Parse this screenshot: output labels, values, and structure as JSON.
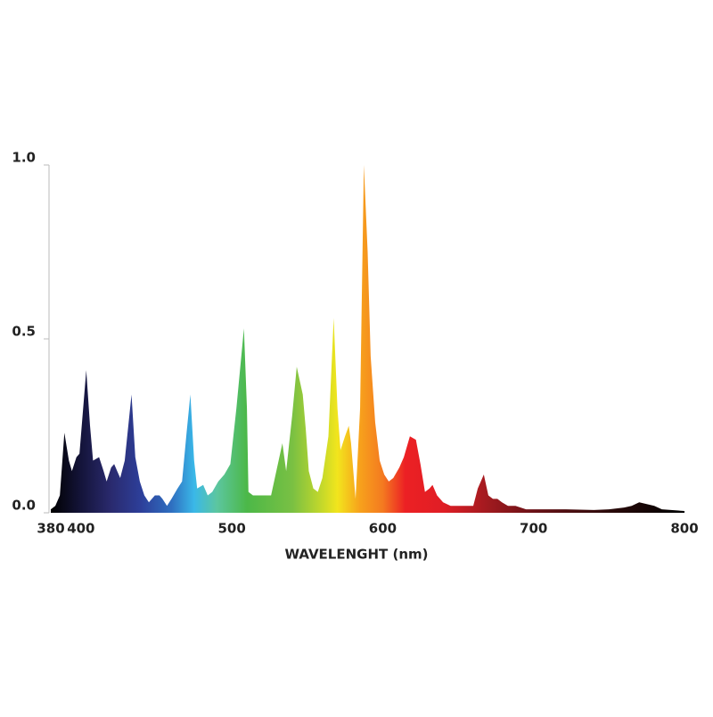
{
  "chart_data": {
    "type": "area",
    "x_label": "WAVELENGHT (nm)",
    "x": [
      380,
      383,
      386,
      389,
      392,
      394,
      397,
      399,
      403.5,
      406,
      408,
      412,
      415,
      417,
      420,
      422,
      424,
      426,
      429,
      433.5,
      436,
      439,
      442,
      445,
      449,
      452,
      454,
      457,
      460,
      464,
      467,
      470,
      472.5,
      475,
      477,
      481,
      484,
      487,
      491,
      495,
      499,
      503,
      508,
      510,
      511,
      514,
      517,
      521,
      526,
      530,
      533.5,
      536,
      540,
      543,
      547,
      549,
      551,
      554,
      557,
      560,
      564,
      567.5,
      570,
      572,
      575,
      577.5,
      579,
      582,
      585,
      587.5,
      590,
      592,
      595,
      598,
      601,
      604,
      607,
      611,
      614,
      618,
      622,
      625,
      628,
      631,
      633,
      636,
      640,
      645,
      650,
      655,
      660,
      663,
      667,
      670,
      673,
      676,
      679,
      683,
      688,
      695,
      705,
      720,
      740,
      750,
      760,
      765,
      770,
      775,
      780,
      785,
      800
    ],
    "values": [
      0.01,
      0.02,
      0.05,
      0.23,
      0.15,
      0.12,
      0.16,
      0.17,
      0.41,
      0.25,
      0.15,
      0.16,
      0.12,
      0.09,
      0.13,
      0.14,
      0.12,
      0.1,
      0.15,
      0.34,
      0.16,
      0.09,
      0.05,
      0.03,
      0.05,
      0.05,
      0.04,
      0.02,
      0.04,
      0.07,
      0.09,
      0.23,
      0.34,
      0.15,
      0.07,
      0.08,
      0.05,
      0.06,
      0.09,
      0.11,
      0.14,
      0.3,
      0.53,
      0.3,
      0.06,
      0.05,
      0.05,
      0.05,
      0.05,
      0.13,
      0.2,
      0.12,
      0.28,
      0.42,
      0.34,
      0.24,
      0.12,
      0.07,
      0.06,
      0.1,
      0.22,
      0.56,
      0.3,
      0.18,
      0.22,
      0.25,
      0.2,
      0.04,
      0.3,
      1.0,
      0.75,
      0.45,
      0.26,
      0.15,
      0.11,
      0.09,
      0.1,
      0.13,
      0.16,
      0.22,
      0.21,
      0.14,
      0.06,
      0.07,
      0.08,
      0.05,
      0.03,
      0.02,
      0.02,
      0.02,
      0.02,
      0.07,
      0.11,
      0.05,
      0.04,
      0.04,
      0.03,
      0.02,
      0.02,
      0.01,
      0.01,
      0.01,
      0.008,
      0.01,
      0.015,
      0.02,
      0.03,
      0.025,
      0.02,
      0.01,
      0.005
    ],
    "gradient": [
      {
        "offset": 380,
        "color": "#000000"
      },
      {
        "offset": 400,
        "color": "#14143a"
      },
      {
        "offset": 420,
        "color": "#2a2a6e"
      },
      {
        "offset": 440,
        "color": "#2d3f9a"
      },
      {
        "offset": 460,
        "color": "#2f6fc0"
      },
      {
        "offset": 475,
        "color": "#3ab8e8"
      },
      {
        "offset": 490,
        "color": "#5cc6a0"
      },
      {
        "offset": 510,
        "color": "#4cb848"
      },
      {
        "offset": 540,
        "color": "#79c043"
      },
      {
        "offset": 560,
        "color": "#c6d92a"
      },
      {
        "offset": 570,
        "color": "#f2e51d"
      },
      {
        "offset": 585,
        "color": "#f7a11c"
      },
      {
        "offset": 600,
        "color": "#f47a20"
      },
      {
        "offset": 615,
        "color": "#ec2024"
      },
      {
        "offset": 640,
        "color": "#e01e25"
      },
      {
        "offset": 670,
        "color": "#a01a1f"
      },
      {
        "offset": 700,
        "color": "#6a1116"
      },
      {
        "offset": 750,
        "color": "#2a0a0a"
      },
      {
        "offset": 800,
        "color": "#000000"
      }
    ],
    "xlim": [
      380,
      800
    ],
    "xticks": [
      380,
      400,
      500,
      600,
      700,
      800
    ],
    "ylim": [
      0,
      1
    ],
    "yticks": [
      {
        "value": 0,
        "label": "0.0"
      },
      0.5,
      {
        "value": 1,
        "label": "1.0"
      }
    ],
    "axis_color": "#bbbbbb"
  }
}
